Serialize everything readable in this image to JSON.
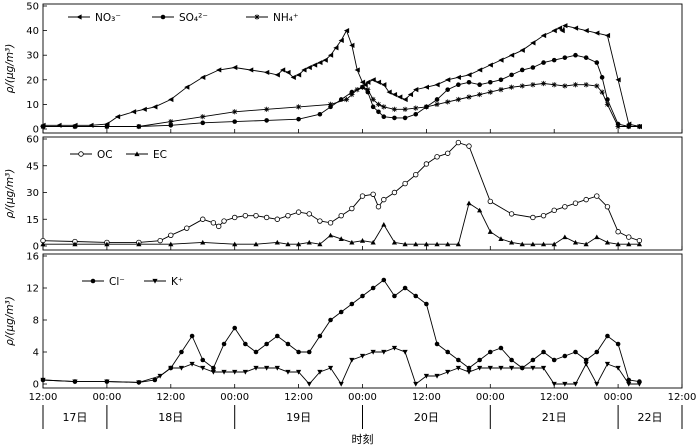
{
  "chart_data": [
    {
      "type": "line",
      "ylabel": "ρ/(μg/m³)",
      "ylim": [
        0,
        50
      ],
      "yticks": [
        "0",
        "10",
        "20",
        "30",
        "40",
        "50"
      ],
      "xlim": [
        0,
        120
      ],
      "x_unit": "hours since 17日 12:00",
      "series": [
        {
          "name": "NO₃⁻",
          "marker": "triangle-left",
          "x": [
            0,
            3,
            6,
            9,
            12,
            14,
            17,
            19,
            21,
            24,
            27,
            30,
            33,
            36,
            39,
            42,
            44,
            45,
            46,
            47,
            48,
            49,
            50,
            51,
            52,
            53,
            54,
            55,
            56,
            57,
            58,
            59,
            60,
            60.5,
            61,
            62,
            63,
            64,
            65,
            66,
            67,
            68,
            69,
            70,
            72,
            74,
            76,
            78,
            80,
            82,
            84,
            86,
            88,
            90,
            92,
            94,
            96,
            97,
            97.5,
            98,
            100,
            102,
            104,
            106,
            108,
            110,
            112
          ],
          "y": [
            1.5,
            1.5,
            1.5,
            1.5,
            2,
            5,
            7,
            8,
            9,
            12,
            17,
            21,
            24,
            25,
            24,
            23,
            22,
            24,
            23,
            21,
            22,
            24,
            25,
            26,
            27,
            28,
            30,
            33,
            36,
            40,
            34,
            24,
            19,
            18,
            19,
            20,
            19,
            18,
            15,
            14,
            13,
            12,
            14,
            16,
            17,
            18,
            20,
            21,
            22,
            24,
            26,
            28,
            30,
            32,
            35,
            38,
            40,
            41,
            40,
            42,
            41,
            40,
            39,
            38,
            20,
            2,
            1
          ]
        },
        {
          "name": "SO₄²⁻",
          "marker": "circle",
          "x": [
            0,
            6,
            12,
            18,
            24,
            30,
            36,
            42,
            48,
            52,
            54,
            56,
            58,
            60,
            61,
            62,
            63,
            64,
            66,
            68,
            70,
            72,
            74,
            76,
            78,
            80,
            82,
            84,
            86,
            88,
            90,
            92,
            94,
            96,
            98,
            100,
            102,
            104,
            105,
            106,
            108,
            110,
            112
          ],
          "y": [
            1,
            1,
            1,
            1,
            1.5,
            2.5,
            3,
            3.5,
            4,
            6,
            9,
            12,
            15,
            17,
            15,
            9,
            7,
            5,
            4.5,
            4.5,
            6,
            9,
            12,
            16,
            18,
            19,
            18,
            19,
            20,
            22,
            24,
            25,
            27,
            28,
            29,
            30,
            29,
            27,
            21,
            12,
            2,
            1,
            1
          ]
        },
        {
          "name": "NH₄⁺",
          "marker": "asterisk",
          "x": [
            0,
            6,
            12,
            18,
            24,
            30,
            36,
            42,
            48,
            54,
            57,
            58,
            59,
            60,
            61,
            62,
            63,
            64,
            66,
            68,
            70,
            72,
            74,
            76,
            78,
            80,
            82,
            84,
            86,
            88,
            90,
            92,
            94,
            96,
            98,
            100,
            102,
            104,
            105,
            106,
            108,
            110,
            112
          ],
          "y": [
            1,
            1,
            1,
            1,
            3,
            5,
            7,
            8,
            9,
            10,
            12,
            14,
            16,
            17,
            16,
            12,
            10,
            9,
            8,
            8,
            8.5,
            9,
            10,
            11,
            12,
            13,
            14,
            15,
            16,
            17,
            17.5,
            18,
            18.5,
            18,
            17.5,
            18,
            18,
            17.5,
            15,
            10,
            1,
            1,
            1
          ]
        }
      ]
    },
    {
      "type": "line",
      "ylabel": "ρ/(μg/m³)",
      "ylim": [
        0,
        60
      ],
      "yticks": [
        "0",
        "15",
        "30",
        "45",
        "60"
      ],
      "xlim": [
        0,
        120
      ],
      "series": [
        {
          "name": "OC",
          "marker": "open-circle",
          "x": [
            0,
            6,
            12,
            18,
            22,
            24,
            27,
            30,
            32,
            33,
            34,
            36,
            38,
            40,
            42,
            44,
            46,
            48,
            50,
            52,
            54,
            56,
            58,
            60,
            62,
            63,
            64,
            66,
            68,
            70,
            72,
            74,
            76,
            78,
            80,
            84,
            88,
            92,
            94,
            96,
            98,
            100,
            102,
            104,
            106,
            108,
            110,
            112
          ],
          "y": [
            3,
            2.5,
            2,
            2,
            3,
            6,
            10,
            15,
            13,
            11,
            14,
            16,
            17,
            17,
            16,
            15,
            17,
            19,
            18,
            14,
            13,
            17,
            21,
            28,
            29,
            22,
            26,
            30,
            35,
            40,
            46,
            50,
            52,
            58,
            56,
            25,
            18,
            16,
            17,
            20,
            22,
            24,
            26,
            28,
            22,
            8,
            5,
            3
          ]
        },
        {
          "name": "EC",
          "marker": "filled-triangle",
          "x": [
            0,
            6,
            12,
            18,
            24,
            30,
            36,
            40,
            44,
            46,
            48,
            50,
            52,
            54,
            56,
            58,
            60,
            62,
            64,
            66,
            68,
            70,
            72,
            74,
            76,
            78,
            80,
            82,
            84,
            86,
            88,
            90,
            92,
            94,
            96,
            98,
            100,
            102,
            104,
            106,
            108,
            110,
            112
          ],
          "y": [
            1,
            1,
            1,
            1,
            1,
            2,
            1,
            1,
            2,
            1,
            1,
            2,
            1,
            6,
            4,
            2,
            3,
            2,
            12,
            2,
            1,
            1,
            1,
            1,
            1,
            1,
            24,
            20,
            8,
            4,
            2,
            1,
            1,
            1,
            1,
            5,
            2,
            1,
            5,
            2,
            1,
            1,
            1
          ]
        }
      ]
    },
    {
      "type": "line",
      "ylabel": "ρ/(μg/m³)",
      "ylim": [
        0,
        16
      ],
      "yticks": [
        "0",
        "4",
        "8",
        "12",
        "16"
      ],
      "xlim": [
        0,
        120
      ],
      "series": [
        {
          "name": "Cl⁻",
          "marker": "circle",
          "x": [
            0,
            6,
            12,
            18,
            21,
            24,
            26,
            28,
            30,
            32,
            34,
            36,
            38,
            40,
            42,
            44,
            46,
            48,
            50,
            52,
            54,
            56,
            58,
            60,
            62,
            64,
            66,
            68,
            70,
            72,
            74,
            76,
            78,
            80,
            82,
            84,
            86,
            88,
            90,
            92,
            94,
            96,
            98,
            100,
            102,
            104,
            106,
            108,
            110,
            112
          ],
          "y": [
            0.5,
            0.3,
            0.3,
            0.2,
            0.5,
            2,
            4,
            6,
            3,
            2,
            5,
            7,
            5,
            4,
            5,
            6,
            5,
            4,
            4,
            6,
            8,
            9,
            10,
            11,
            12,
            13,
            11,
            12,
            11,
            10,
            5,
            4,
            3,
            2,
            3,
            4,
            4.5,
            3,
            2,
            3,
            4,
            3,
            3.5,
            4,
            3,
            4,
            6,
            5,
            0.5,
            0.3
          ]
        },
        {
          "name": "K⁺",
          "marker": "filled-triangle-down",
          "x": [
            0,
            6,
            12,
            18,
            22,
            24,
            26,
            28,
            30,
            32,
            34,
            36,
            38,
            40,
            42,
            44,
            46,
            48,
            50,
            52,
            54,
            56,
            58,
            60,
            62,
            64,
            66,
            68,
            70,
            72,
            74,
            76,
            78,
            80,
            82,
            84,
            86,
            88,
            90,
            92,
            94,
            96,
            98,
            100,
            102,
            104,
            106,
            108,
            110,
            112
          ],
          "y": [
            0.5,
            0.3,
            0.3,
            0.2,
            1,
            2,
            2,
            2.5,
            2,
            1.5,
            1.5,
            1.5,
            1.5,
            2,
            2,
            2,
            1.5,
            1.5,
            0,
            1.5,
            2,
            0,
            3,
            3.5,
            4,
            4,
            4.5,
            4,
            0,
            1,
            1,
            1.5,
            2,
            1.5,
            2,
            2,
            2,
            2,
            2,
            2,
            2,
            0,
            0,
            0,
            2.5,
            0,
            2.5,
            2,
            0,
            0
          ]
        }
      ]
    }
  ],
  "x_axis": {
    "tick_hours": [
      0,
      12,
      24,
      36,
      48,
      60,
      72,
      84,
      96,
      108,
      120
    ],
    "tick_labels": [
      "12:00",
      "00:00",
      "12:00",
      "00:00",
      "12:00",
      "00:00",
      "12:00",
      "00:00",
      "12:00",
      "00:00",
      "12:00"
    ],
    "day_boundaries": [
      0,
      12,
      36,
      60,
      84,
      108,
      120
    ],
    "days": [
      {
        "label": "17日",
        "center": 6
      },
      {
        "label": "18日",
        "center": 24
      },
      {
        "label": "19日",
        "center": 48
      },
      {
        "label": "20日",
        "center": 72
      },
      {
        "label": "21日",
        "center": 96
      },
      {
        "label": "22日",
        "center": 114
      }
    ],
    "label": "时刻"
  }
}
